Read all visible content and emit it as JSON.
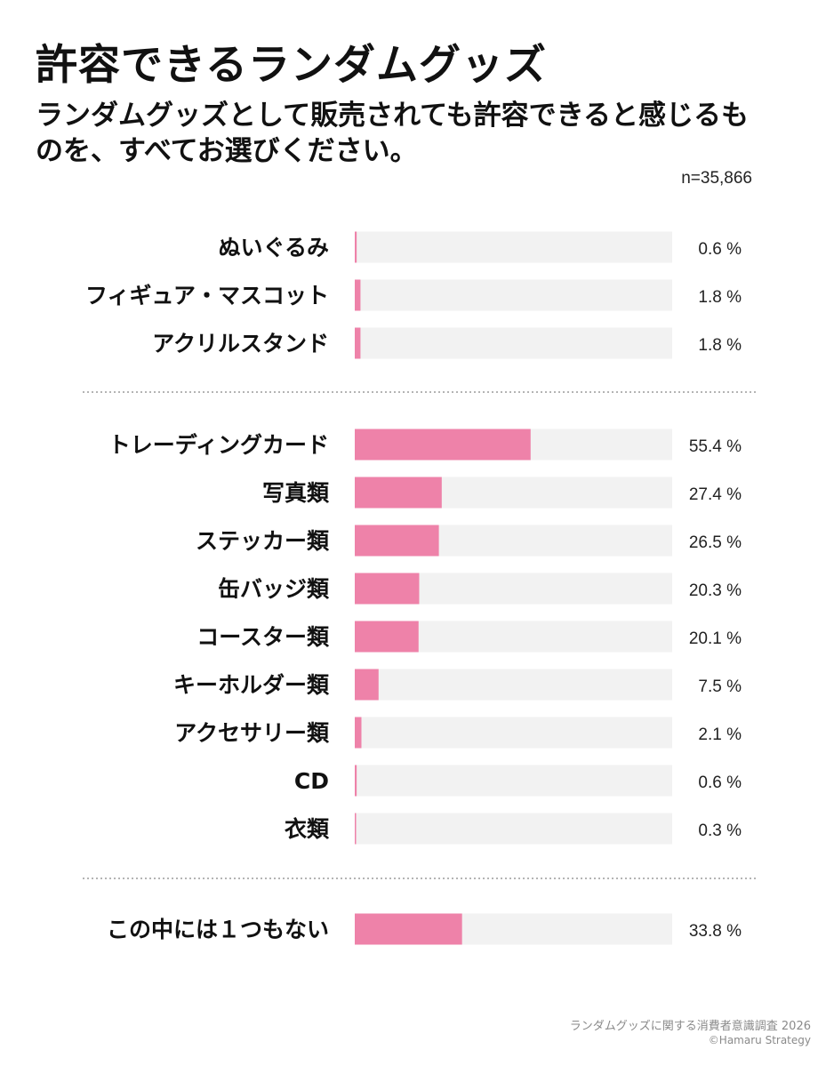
{
  "title": "許容できるランダムグッズ",
  "subtitle": "ランダムグッズとして販売されても許容できると感じるものを、すべてお選びください。",
  "sample_size": "n=35,866",
  "footer": {
    "source": "ランダムグッズに関する消費者意識調査 2026",
    "copyright": "©Hamaru Strategy"
  },
  "colors": {
    "bar": "#ee82a9",
    "track": "#f2f2f2",
    "divider": "#888888"
  },
  "chart_data": {
    "type": "bar",
    "orientation": "horizontal",
    "unit": "%",
    "xlim": [
      0,
      100
    ],
    "grid": false,
    "groups": [
      {
        "categories": [
          "ぬいぐるみ",
          "フィギュア・マスコット",
          "アクリルスタンド"
        ],
        "values": [
          0.6,
          1.8,
          1.8
        ],
        "labels": [
          "0.6 %",
          "1.8 %",
          "1.8 %"
        ]
      },
      {
        "categories": [
          "トレーディングカード",
          "写真類",
          "ステッカー類",
          "缶バッジ類",
          "コースター類",
          "キーホルダー類",
          "アクセサリー類",
          "CD",
          "衣類"
        ],
        "values": [
          55.4,
          27.4,
          26.5,
          20.3,
          20.1,
          7.5,
          2.1,
          0.6,
          0.3
        ],
        "labels": [
          "55.4 %",
          "27.4 %",
          "26.5 %",
          "20.3 %",
          "20.1 %",
          "7.5 %",
          "2.1 %",
          "0.6 %",
          "0.3 %"
        ]
      },
      {
        "categories": [
          "この中には１つもない"
        ],
        "values": [
          33.8
        ],
        "labels": [
          "33.8 %"
        ]
      }
    ]
  }
}
